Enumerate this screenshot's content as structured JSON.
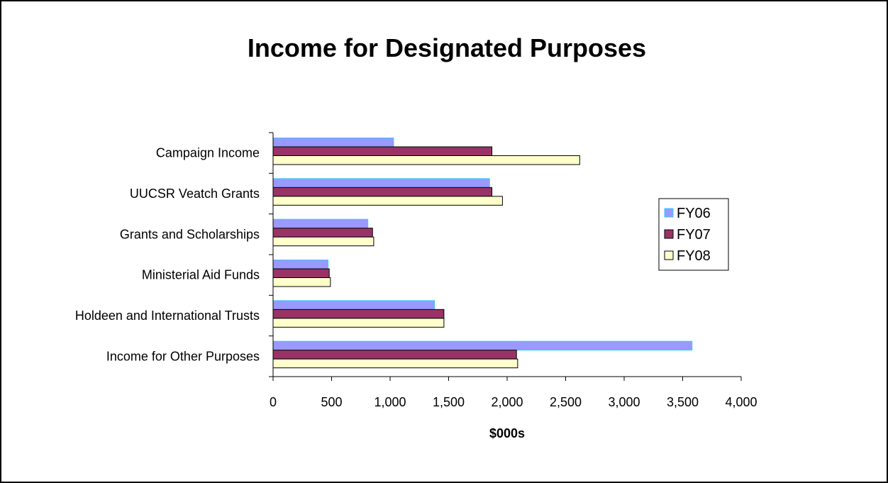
{
  "chart_data": {
    "type": "bar",
    "orientation": "horizontal",
    "title": "Income for Designated Purposes",
    "xlabel": "$000s",
    "ylabel": "",
    "xlim": [
      0,
      4000
    ],
    "xticks": [
      0,
      500,
      1000,
      1500,
      2000,
      2500,
      3000,
      3500,
      4000
    ],
    "xtick_labels": [
      "0",
      "500",
      "1,000",
      "1,500",
      "2,000",
      "2,500",
      "3,000",
      "3,500",
      "4,000"
    ],
    "grid": false,
    "legend_position": "right",
    "categories": [
      "Campaign Income",
      "UUCSR Veatch Grants",
      "Grants and Scholarships",
      "Ministerial Aid Funds",
      "Holdeen and International Trusts",
      "Income for Other Purposes"
    ],
    "series": [
      {
        "name": "FY06",
        "color": "#9999ff",
        "edge": "#33ccff",
        "values": [
          1030,
          1850,
          810,
          470,
          1380,
          3580
        ]
      },
      {
        "name": "FY07",
        "color": "#993366",
        "edge": "#000000",
        "values": [
          1870,
          1870,
          850,
          480,
          1460,
          2080
        ]
      },
      {
        "name": "FY08",
        "color": "#ffffcc",
        "edge": "#000000",
        "values": [
          2620,
          1960,
          860,
          490,
          1460,
          2090
        ]
      }
    ]
  }
}
